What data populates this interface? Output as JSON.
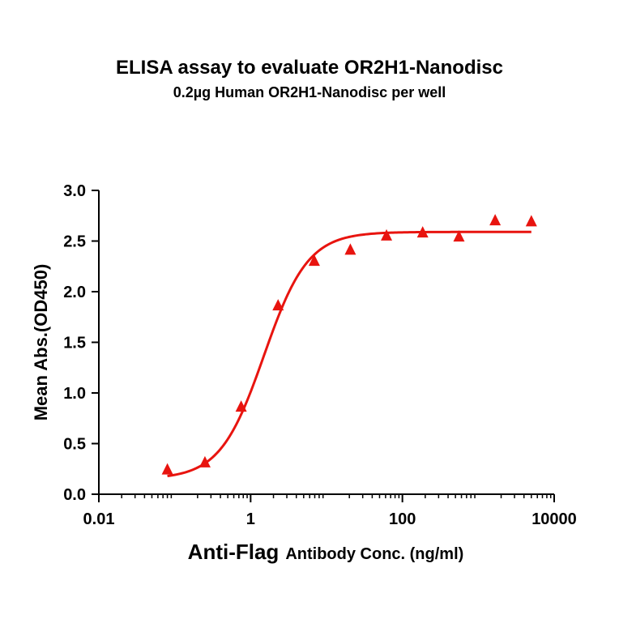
{
  "chart_data": {
    "type": "scatter",
    "title": "ELISA assay to evaluate OR2H1-Nanodisc",
    "subtitle": "0.2µg Human OR2H1-Nanodisc per well",
    "xlabel_main": "Anti-Flag",
    "xlabel_rest": "Antibody Conc. (ng/ml)",
    "ylabel": "Mean Abs.(OD450)",
    "xscale": "log",
    "xlim": [
      0.01,
      10000
    ],
    "ylim": [
      0.0,
      3.0
    ],
    "x_ticks": [
      0.01,
      1,
      100,
      10000
    ],
    "x_tick_labels": [
      "0.01",
      "1",
      "100",
      "10000"
    ],
    "y_ticks": [
      0.0,
      0.5,
      1.0,
      1.5,
      2.0,
      2.5,
      3.0
    ],
    "y_tick_labels": [
      "0.0",
      "0.5",
      "1.0",
      "1.5",
      "2.0",
      "2.5",
      "3.0"
    ],
    "grid": false,
    "series": [
      {
        "marker": "triangle",
        "color": "#e8140f",
        "x": [
          0.08,
          0.25,
          0.75,
          2.3,
          6.9,
          20.6,
          61.7,
          185,
          556,
          1667,
          5000
        ],
        "y": [
          0.24,
          0.31,
          0.86,
          1.86,
          2.3,
          2.41,
          2.55,
          2.58,
          2.54,
          2.7,
          2.69
        ]
      }
    ],
    "fit": {
      "color": "#e8140f",
      "model": "4PL",
      "bottom": 0.15,
      "top": 2.59,
      "ec50": 1.5,
      "hill": 1.5,
      "x_range": [
        0.08,
        5000
      ]
    }
  }
}
